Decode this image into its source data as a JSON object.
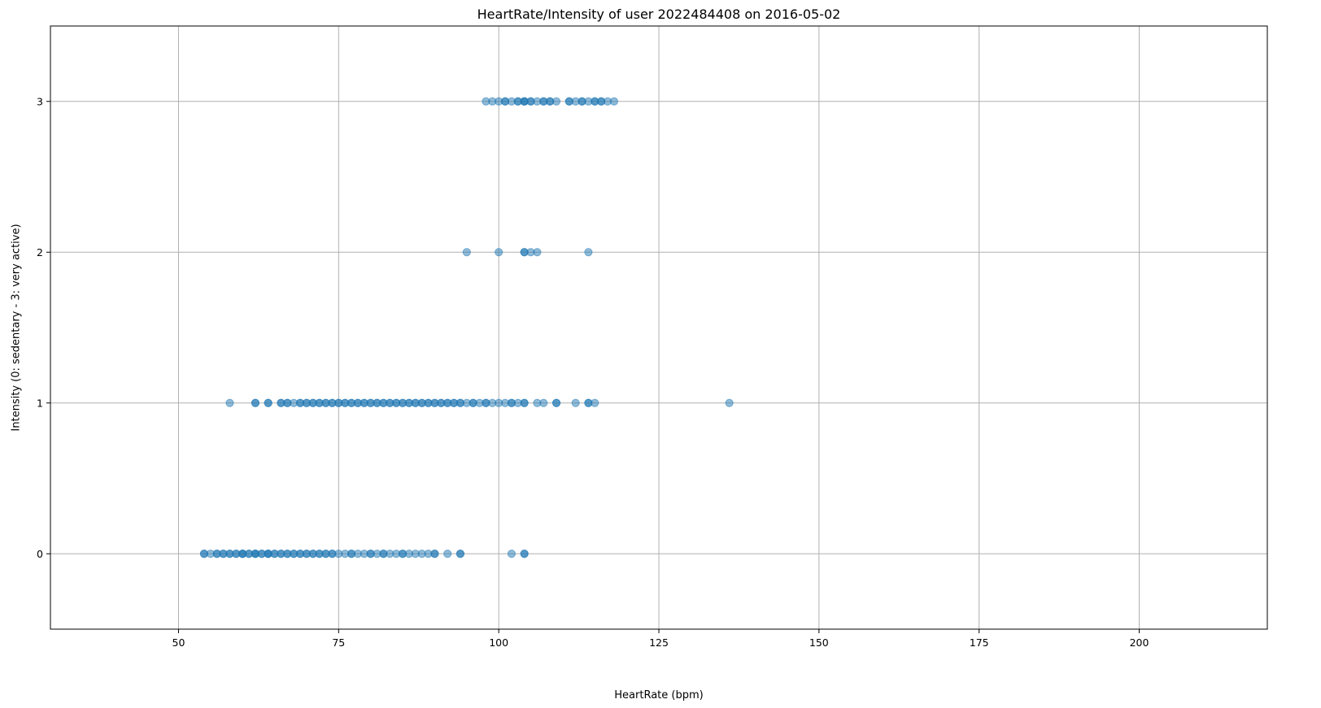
{
  "chart_data": {
    "type": "scatter",
    "title": "HeartRate/Intensity of user 2022484408 on 2016-05-02",
    "xlabel": "HeartRate (bpm)",
    "ylabel": "Intensity (0: sedentary - 3: very active)",
    "xlim": [
      30,
      220
    ],
    "ylim": [
      -0.5,
      3.5
    ],
    "xticks": [
      50,
      75,
      100,
      125,
      150,
      175,
      200
    ],
    "yticks": [
      0,
      1,
      2,
      3
    ],
    "grid": true,
    "marker_color": "#1f77b4",
    "marker_alpha": 0.5,
    "series": [
      {
        "y": 0,
        "x": [
          54,
          54,
          55,
          56,
          56,
          57,
          57,
          58,
          58,
          59,
          59,
          60,
          60,
          60,
          61,
          61,
          62,
          62,
          62,
          63,
          63,
          64,
          64,
          64,
          65,
          65,
          66,
          66,
          67,
          67,
          68,
          68,
          69,
          69,
          70,
          70,
          71,
          71,
          72,
          72,
          73,
          73,
          74,
          74,
          75,
          76,
          77,
          77,
          78,
          79,
          80,
          80,
          81,
          82,
          82,
          83,
          84,
          85,
          85,
          86,
          87,
          88,
          89,
          90,
          90,
          92,
          94,
          94,
          102,
          104,
          104
        ]
      },
      {
        "y": 1,
        "x": [
          58,
          62,
          62,
          64,
          64,
          66,
          66,
          67,
          67,
          68,
          69,
          69,
          70,
          70,
          71,
          71,
          72,
          72,
          73,
          73,
          74,
          74,
          75,
          75,
          76,
          76,
          77,
          77,
          78,
          78,
          79,
          79,
          80,
          80,
          81,
          81,
          82,
          82,
          83,
          83,
          84,
          84,
          85,
          85,
          86,
          86,
          87,
          87,
          88,
          88,
          89,
          89,
          90,
          90,
          91,
          91,
          92,
          92,
          93,
          93,
          94,
          94,
          95,
          96,
          96,
          97,
          98,
          98,
          99,
          100,
          101,
          102,
          102,
          103,
          104,
          104,
          106,
          107,
          109,
          109,
          112,
          114,
          114,
          115,
          136
        ]
      },
      {
        "y": 2,
        "x": [
          95,
          100,
          104,
          104,
          105,
          106,
          114
        ]
      },
      {
        "y": 3,
        "x": [
          98,
          99,
          100,
          101,
          101,
          102,
          103,
          103,
          104,
          104,
          104,
          105,
          105,
          106,
          107,
          107,
          108,
          108,
          109,
          111,
          111,
          112,
          113,
          113,
          114,
          115,
          115,
          116,
          116,
          117,
          118
        ]
      }
    ]
  }
}
